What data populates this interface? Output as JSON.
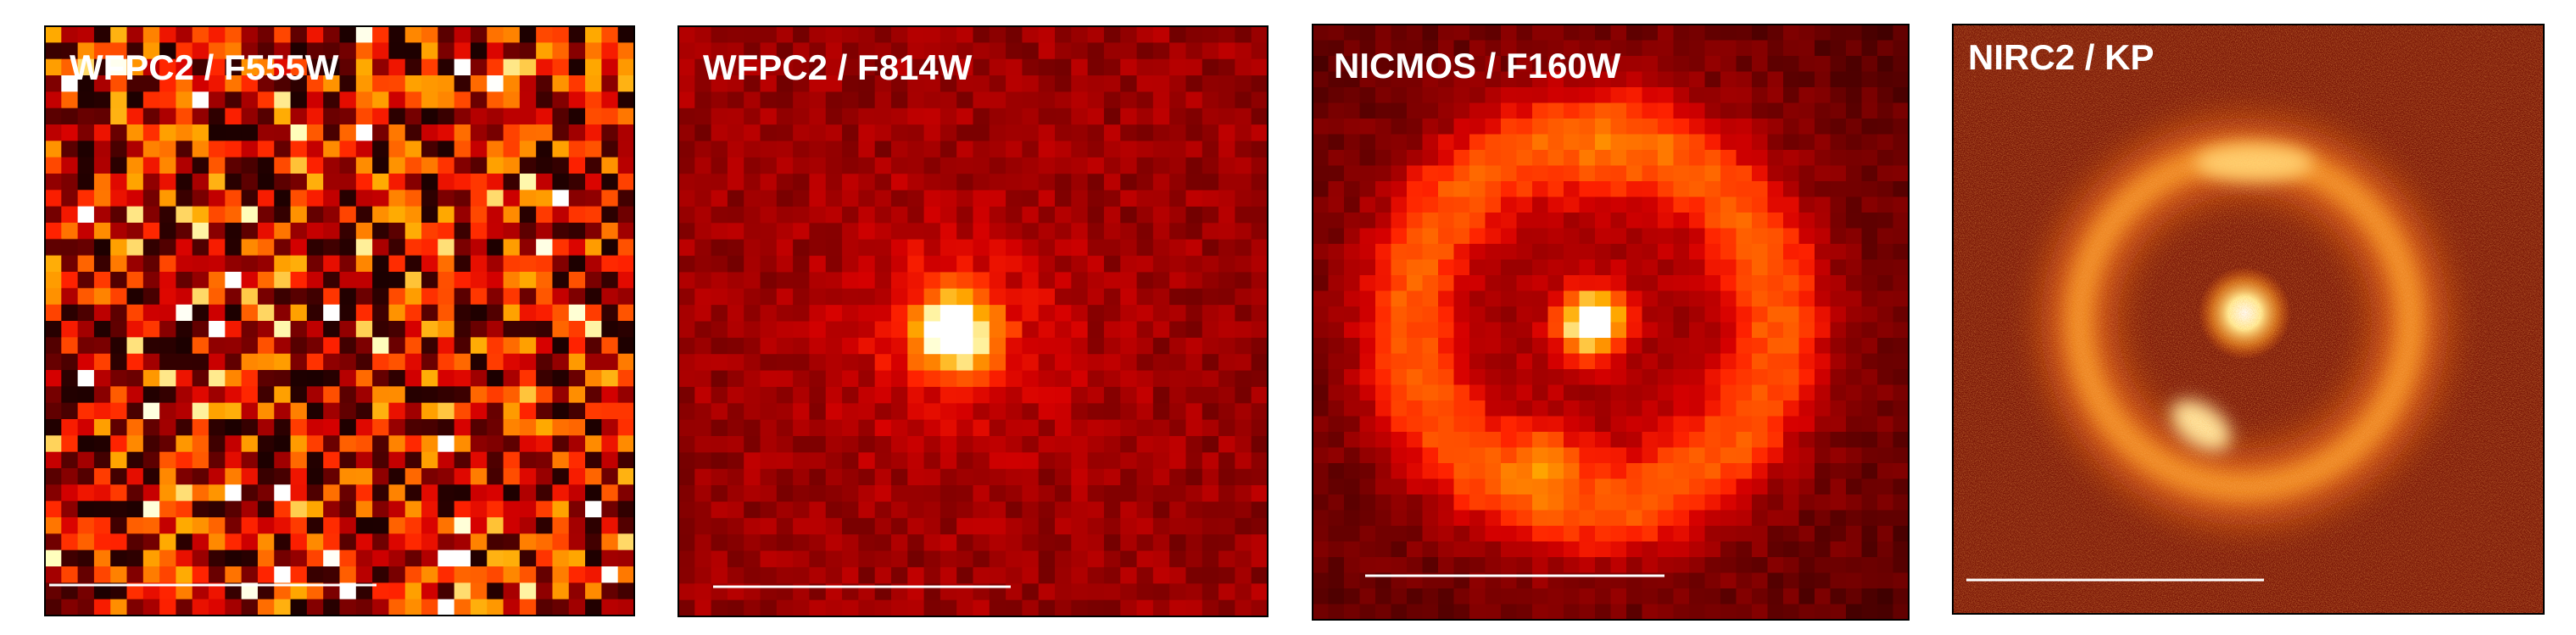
{
  "panels": [
    {
      "label": "WFPC2 / F555W"
    },
    {
      "label": "WFPC2 / F814W"
    },
    {
      "label": "NICMOS / F160W"
    },
    {
      "label": "NIRC2 / KP"
    }
  ]
}
